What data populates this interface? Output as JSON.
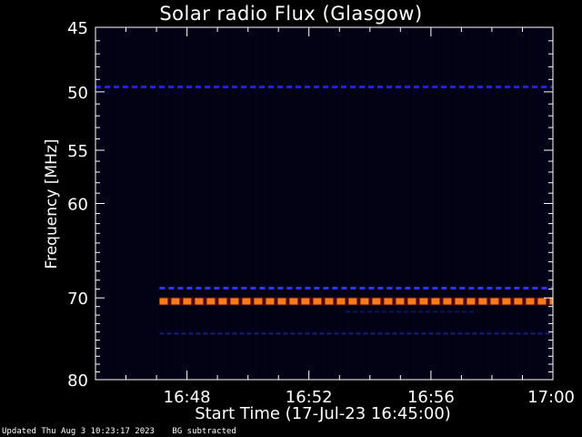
{
  "chart_data": {
    "type": "heatmap",
    "title": "Solar radio Flux (Glasgow)",
    "xlabel": "Start Time (17-Jul-23 16:45:00)",
    "ylabel": "Frequency [MHz]",
    "x_range_minutes": [
      0,
      15
    ],
    "x_ticks": [
      {
        "label": "16:48",
        "minute": 3
      },
      {
        "label": "16:52",
        "minute": 7
      },
      {
        "label": "16:56",
        "minute": 11
      },
      {
        "label": "17:00",
        "minute": 15
      }
    ],
    "y_range_mhz": [
      45,
      80
    ],
    "y_ticks": [
      45,
      50,
      55,
      60,
      70,
      80
    ],
    "y_scale": "log",
    "y_inverted": true,
    "grid": false,
    "background_color": "#020214",
    "bands": [
      {
        "freq_mhz": 49.6,
        "start_minute": 0,
        "end_minute": 15,
        "color": "#2222dd",
        "intensity": "medium"
      },
      {
        "freq_mhz": 68.9,
        "start_minute": 2.1,
        "end_minute": 15,
        "color": "#3333ff",
        "intensity": "medium"
      },
      {
        "freq_mhz": 70.4,
        "start_minute": 2.1,
        "end_minute": 15,
        "color": "#ff7a1a",
        "intensity": "high"
      },
      {
        "freq_mhz": 71.6,
        "start_minute": 8.2,
        "end_minute": 12.5,
        "color": "#14145a",
        "intensity": "low"
      },
      {
        "freq_mhz": 74.2,
        "start_minute": 2.1,
        "end_minute": 15,
        "color": "#1a1a8a",
        "intensity": "low"
      }
    ]
  },
  "footer": {
    "updated": "Updated Thu Aug  3 10:23:17 2023",
    "note": "BG subtracted"
  }
}
